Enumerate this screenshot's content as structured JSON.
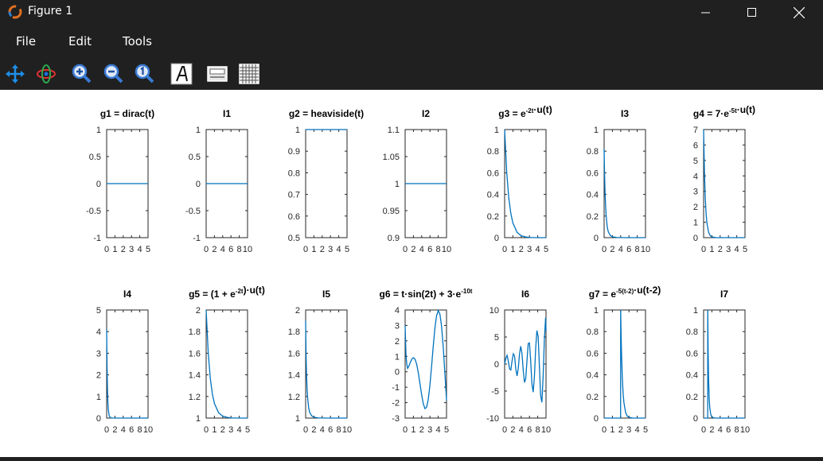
{
  "window": {
    "title": "Figure 1"
  },
  "menu": {
    "items": [
      "File",
      "Edit",
      "Tools"
    ]
  },
  "toolbar": {
    "icons": [
      "pan-icon",
      "rotate-3d-icon",
      "zoom-in-icon",
      "zoom-out-icon",
      "zoom-reset-icon",
      "text-annotation-icon",
      "colorbar-icon",
      "grid-icon"
    ]
  },
  "colors": {
    "line": "#0072bd",
    "chrome": "#202020"
  },
  "chart_data": [
    {
      "type": "line",
      "title": "g1 = dirac(t)",
      "xlim": [
        0,
        5
      ],
      "ylim": [
        -1,
        1
      ],
      "xticks": [
        "0",
        "1",
        "2",
        "3",
        "4",
        "5"
      ],
      "yticks": [
        "-1",
        "-0.5",
        "0",
        "0.5",
        "1"
      ],
      "x": [
        0,
        5
      ],
      "y": [
        0,
        0
      ]
    },
    {
      "type": "line",
      "title": "I1",
      "xlim": [
        0,
        10
      ],
      "ylim": [
        -1,
        1
      ],
      "xticks": [
        "0",
        "2",
        "4",
        "6",
        "8",
        "10"
      ],
      "yticks": [
        "-1",
        "-0.5",
        "0",
        "0.5",
        "1"
      ],
      "x": [
        0,
        10
      ],
      "y": [
        0,
        0
      ]
    },
    {
      "type": "line",
      "title": "g2 = heaviside(t)",
      "xlim": [
        0,
        5
      ],
      "ylim": [
        0.5,
        1
      ],
      "xticks": [
        "0",
        "1",
        "2",
        "3",
        "4",
        "5"
      ],
      "yticks": [
        "0.5",
        "0.6",
        "0.7",
        "0.8",
        "0.9",
        "1"
      ],
      "x": [
        0,
        5
      ],
      "y": [
        1,
        1
      ]
    },
    {
      "type": "line",
      "title": "I2",
      "xlim": [
        0,
        10
      ],
      "ylim": [
        0.9,
        1.1
      ],
      "xticks": [
        "0",
        "2",
        "4",
        "6",
        "8",
        "10"
      ],
      "yticks": [
        "0.9",
        "0.95",
        "1",
        "1.05",
        "1.1"
      ],
      "x": [
        0,
        10
      ],
      "y": [
        1,
        1
      ]
    },
    {
      "type": "line",
      "title": "g3 = e^{-2t}·u(t)",
      "xlim": [
        0,
        5
      ],
      "ylim": [
        0,
        1
      ],
      "xticks": [
        "0",
        "1",
        "2",
        "3",
        "4",
        "5"
      ],
      "yticks": [
        "0",
        "0.2",
        "0.4",
        "0.6",
        "0.8",
        "1"
      ],
      "x": [
        0,
        0.25,
        0.5,
        0.75,
        1,
        1.5,
        2,
        2.5,
        3,
        4,
        5
      ],
      "y": [
        1,
        0.607,
        0.368,
        0.223,
        0.135,
        0.05,
        0.018,
        0.007,
        0.002,
        0,
        0
      ]
    },
    {
      "type": "line",
      "title": "I3",
      "xlim": [
        0,
        10
      ],
      "ylim": [
        0,
        1
      ],
      "xticks": [
        "0",
        "2",
        "4",
        "6",
        "8",
        "10"
      ],
      "yticks": [
        "0",
        "0.2",
        "0.4",
        "0.6",
        "0.8",
        "1"
      ],
      "x": [
        0,
        0.1,
        0.2,
        0.35,
        0.5,
        0.75,
        1,
        1.5,
        2,
        3,
        5,
        10
      ],
      "y": [
        0.82,
        0.6,
        0.45,
        0.3,
        0.2,
        0.1,
        0.055,
        0.02,
        0.008,
        0.002,
        0,
        0
      ]
    },
    {
      "type": "line",
      "title": "g4 = 7·e^{-5t}·u(t)",
      "xlim": [
        0,
        5
      ],
      "ylim": [
        0,
        7
      ],
      "xticks": [
        "0",
        "1",
        "2",
        "3",
        "4",
        "5"
      ],
      "yticks": [
        "0",
        "1",
        "2",
        "3",
        "4",
        "5",
        "6",
        "7"
      ],
      "x": [
        0,
        0.1,
        0.2,
        0.3,
        0.4,
        0.6,
        0.8,
        1,
        1.5,
        2,
        5
      ],
      "y": [
        7,
        4.25,
        2.58,
        1.56,
        0.95,
        0.35,
        0.13,
        0.05,
        0.004,
        0,
        0
      ]
    },
    {
      "type": "line",
      "title": "I4",
      "xlim": [
        0,
        10
      ],
      "ylim": [
        0,
        5
      ],
      "xticks": [
        "0",
        "2",
        "4",
        "6",
        "8",
        "10"
      ],
      "yticks": [
        "0",
        "1",
        "2",
        "3",
        "4",
        "5"
      ],
      "x": [
        0,
        0.05,
        0.1,
        0.2,
        0.3,
        0.4,
        0.6,
        0.8,
        1,
        2,
        10
      ],
      "y": [
        4.1,
        3.2,
        2.4,
        1.3,
        0.72,
        0.4,
        0.12,
        0.04,
        0.01,
        0,
        0
      ]
    },
    {
      "type": "line",
      "title": "g5 = (1 + e^{-2t})·u(t)",
      "xlim": [
        0,
        5
      ],
      "ylim": [
        1,
        2
      ],
      "xticks": [
        "0",
        "1",
        "2",
        "3",
        "4",
        "5"
      ],
      "yticks": [
        "1",
        "1.2",
        "1.4",
        "1.6",
        "1.8",
        "2"
      ],
      "x": [
        0,
        0.25,
        0.5,
        0.75,
        1,
        1.5,
        2,
        2.5,
        3,
        4,
        5
      ],
      "y": [
        2,
        1.607,
        1.368,
        1.223,
        1.135,
        1.05,
        1.018,
        1.007,
        1.002,
        1,
        1
      ]
    },
    {
      "type": "line",
      "title": "I5",
      "xlim": [
        0,
        10
      ],
      "ylim": [
        1,
        2
      ],
      "xticks": [
        "0",
        "2",
        "4",
        "6",
        "8",
        "10"
      ],
      "yticks": [
        "1",
        "1.2",
        "1.4",
        "1.6",
        "1.8",
        "2"
      ],
      "x": [
        0,
        0.1,
        0.2,
        0.35,
        0.5,
        0.75,
        1,
        1.5,
        2,
        3,
        5,
        10
      ],
      "y": [
        1.9,
        1.6,
        1.42,
        1.27,
        1.18,
        1.09,
        1.05,
        1.02,
        1.008,
        1.002,
        1,
        1
      ]
    },
    {
      "type": "line",
      "title": "g6 = t·sin(2t) + 3·e^{-10t}",
      "xlim": [
        0,
        5
      ],
      "ylim": [
        -3,
        4
      ],
      "xticks": [
        "0",
        "1",
        "2",
        "3",
        "4",
        "5"
      ],
      "yticks": [
        "-3",
        "-2",
        "-1",
        "0",
        "1",
        "2",
        "3",
        "4"
      ],
      "x": [
        0,
        0.1,
        0.2,
        0.3,
        0.4,
        0.5,
        0.6,
        0.7,
        0.8,
        0.9,
        1,
        1.2,
        1.4,
        1.6,
        1.8,
        2,
        2.2,
        2.4,
        2.6,
        2.8,
        3,
        3.2,
        3.4,
        3.6,
        3.8,
        4,
        4.2,
        4.4,
        4.6,
        4.8,
        5
      ],
      "y": [
        3,
        1.12,
        0.48,
        0.22,
        0.31,
        0.43,
        0.57,
        0.69,
        0.8,
        0.88,
        0.91,
        0.81,
        0.47,
        -0.09,
        -0.8,
        -1.51,
        -2.09,
        -2.39,
        -2.29,
        -1.77,
        -0.84,
        0.38,
        1.68,
        2.84,
        3.63,
        3.96,
        3.74,
        2.95,
        1.62,
        -0.08,
        -1.86
      ]
    },
    {
      "type": "line",
      "title": "I6",
      "xlim": [
        0,
        10
      ],
      "ylim": [
        -10,
        10
      ],
      "xticks": [
        "0",
        "2",
        "4",
        "6",
        "8",
        "10"
      ],
      "yticks": [
        "-10",
        "-5",
        "0",
        "5",
        "10"
      ],
      "x": [
        0,
        0.3,
        0.6,
        0.9,
        1.2,
        1.5,
        1.8,
        2.1,
        2.4,
        2.7,
        3,
        3.3,
        3.6,
        3.9,
        4.2,
        4.5,
        4.8,
        5.1,
        5.4,
        5.7,
        6,
        6.3,
        6.6,
        6.9,
        7.2,
        7.5,
        7.8,
        8.1,
        8.4,
        8.7,
        9,
        9.3,
        9.6,
        9.9,
        10
      ],
      "y": [
        0,
        1.1,
        1.6,
        0.5,
        -0.9,
        -1.1,
        0.6,
        1.9,
        1.5,
        -0.9,
        -2.2,
        -0.8,
        1.9,
        3.3,
        1.9,
        -1.2,
        -3.4,
        -2.7,
        0.6,
        3.8,
        3.9,
        0.5,
        -3.7,
        -5.2,
        -2.3,
        2.9,
        6.2,
        5.1,
        -0.4,
        -5.8,
        -7.1,
        -2.4,
        4.5,
        8.6,
        6.2
      ]
    },
    {
      "type": "line",
      "title": "g7 = e^{-5(t-2)}·u(t-2)",
      "xlim": [
        0,
        5
      ],
      "ylim": [
        0,
        1
      ],
      "xticks": [
        "0",
        "1",
        "2",
        "3",
        "4",
        "5"
      ],
      "yticks": [
        "0",
        "0.2",
        "0.4",
        "0.6",
        "0.8",
        "1"
      ],
      "x": [
        0,
        1.99,
        2,
        2.05,
        2.1,
        2.2,
        2.3,
        2.4,
        2.6,
        2.8,
        3,
        3.5,
        4,
        5
      ],
      "y": [
        0,
        0,
        1,
        0.78,
        0.61,
        0.37,
        0.22,
        0.14,
        0.05,
        0.018,
        0.007,
        0,
        0,
        0
      ]
    },
    {
      "type": "line",
      "title": "I7",
      "xlim": [
        0,
        10
      ],
      "ylim": [
        0,
        1
      ],
      "xticks": [
        "0",
        "2",
        "4",
        "6",
        "8",
        "10"
      ],
      "yticks": [
        "0",
        "0.2",
        "0.4",
        "0.6",
        "0.8",
        "1"
      ],
      "x": [
        0,
        0.99,
        1,
        1.1,
        1.2,
        1.35,
        1.5,
        1.75,
        2,
        2.5,
        3,
        5,
        10
      ],
      "y": [
        0,
        0,
        1,
        0.6,
        0.37,
        0.18,
        0.09,
        0.03,
        0.01,
        0.002,
        0,
        0,
        0
      ]
    }
  ]
}
